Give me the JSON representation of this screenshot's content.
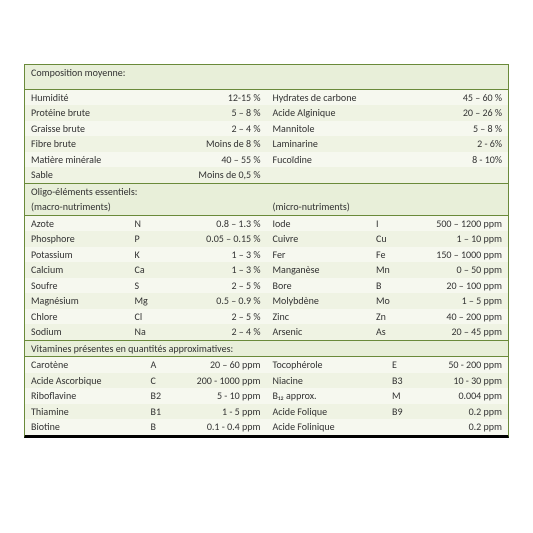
{
  "section1": {
    "title": "Composition moyenne:",
    "left": [
      {
        "n": "Humidité",
        "v": "12-15 %"
      },
      {
        "n": "Protéine brute",
        "v": "5 – 8 %"
      },
      {
        "n": "Graisse brute",
        "v": "2 – 4 %"
      },
      {
        "n": "Fibre brute",
        "v": "Moins de 8 %"
      },
      {
        "n": "Matière minérale",
        "v": "40 – 55 %"
      },
      {
        "n": "Sable",
        "v": "Moins de 0,5 %"
      }
    ],
    "right": [
      {
        "n": "Hydrates de carbone",
        "v": "45 – 60 %"
      },
      {
        "n": "Acide Alginique",
        "v": "20 – 26 %"
      },
      {
        "n": "Mannitole",
        "v": "5 – 8 %"
      },
      {
        "n": "Laminarine",
        "v": "2 - 6%"
      },
      {
        "n": "Fucoïdine",
        "v": "8 - 10%"
      }
    ]
  },
  "section2": {
    "titleLeft1": "Oligo-éléments essentiels:",
    "titleLeft2": "(macro-nutriments)",
    "titleRight": "(micro-nutriments)",
    "left": [
      {
        "n": "Azote",
        "s": "N",
        "v": "0.8 – 1.3 %"
      },
      {
        "n": "Phosphore",
        "s": "P",
        "v": "0.05 – 0.15 %"
      },
      {
        "n": "Potassium",
        "s": "K",
        "v": "1 – 3 %"
      },
      {
        "n": "Calcium",
        "s": "Ca",
        "v": "1 – 3 %"
      },
      {
        "n": "Soufre",
        "s": "S",
        "v": "2 – 5 %"
      },
      {
        "n": "Magnésium",
        "s": "Mg",
        "v": "0.5 – 0.9 %"
      },
      {
        "n": "Chlore",
        "s": "Cl",
        "v": "2 – 5 %"
      },
      {
        "n": "Sodium",
        "s": "Na",
        "v": "2 – 4 %"
      }
    ],
    "right": [
      {
        "n": "Iode",
        "s": "I",
        "v": "500 – 1200 ppm"
      },
      {
        "n": "Cuivre",
        "s": "Cu",
        "v": "1 – 10 ppm"
      },
      {
        "n": "Fer",
        "s": "Fe",
        "v": "150 – 1000 ppm"
      },
      {
        "n": "Manganèse",
        "s": "Mn",
        "v": "0 – 50 ppm"
      },
      {
        "n": "Bore",
        "s": "B",
        "v": "20 – 100 ppm"
      },
      {
        "n": "Molybdène",
        "s": "Mo",
        "v": "1 – 5 ppm"
      },
      {
        "n": "Zinc",
        "s": "Zn",
        "v": "40 – 200 ppm"
      },
      {
        "n": "Arsenic",
        "s": "As",
        "v": "20 – 45 ppm"
      }
    ]
  },
  "section3": {
    "title": "Vitamines présentes en quantités approximatives:",
    "left": [
      {
        "n": "Carotène",
        "s": "A",
        "v": "20 – 60 ppm"
      },
      {
        "n": "Acide Ascorbique",
        "s": "C",
        "v": "200 - 1000 ppm"
      },
      {
        "n": "Riboflavine",
        "s": "B2",
        "v": "5 - 10 ppm"
      },
      {
        "n": "Thiamine",
        "s": "B1",
        "v": "1 - 5 ppm"
      },
      {
        "n": "Biotine",
        "s": "B",
        "v": "0.1 - 0.4 ppm"
      }
    ],
    "right": [
      {
        "n": "Tocophérole",
        "s": "E",
        "v": "50 - 200 ppm"
      },
      {
        "n": "Niacine",
        "s": "B3",
        "v": "10 - 30 ppm"
      },
      {
        "n": "B₁₂ approx.",
        "s": "M",
        "v": "0.004 ppm"
      },
      {
        "n": "Acide Folique",
        "s": "B9",
        "v": "0.2 ppm"
      },
      {
        "n": "Acide Folinique",
        "s": "",
        "v": "0.2 ppm"
      }
    ]
  }
}
